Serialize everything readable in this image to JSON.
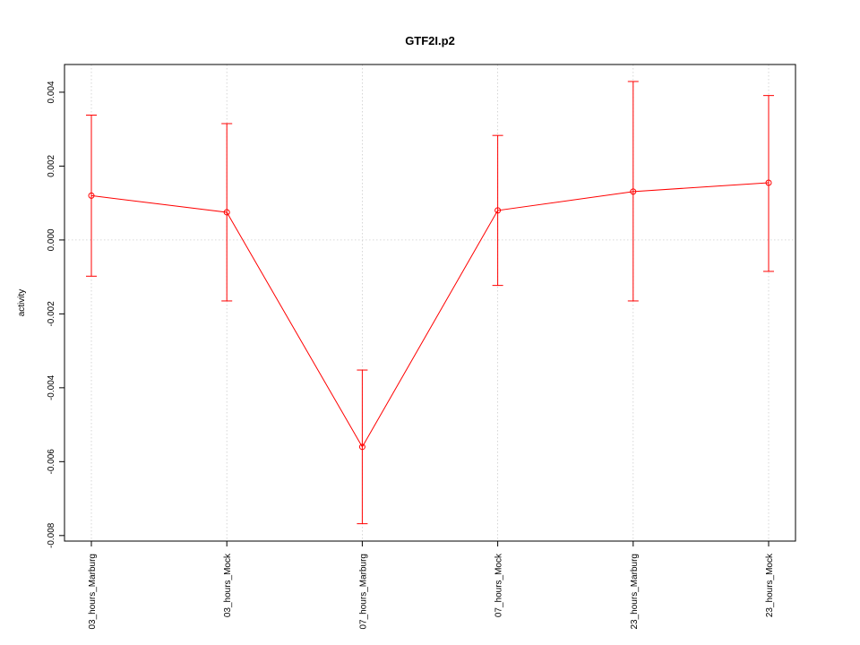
{
  "chart_data": {
    "type": "line",
    "title": "GTF2I.p2",
    "xlabel": "",
    "ylabel": "activity",
    "categories": [
      "03_hours_Marburg",
      "03_hours_Mock",
      "07_hours_Marburg",
      "07_hours_Mock",
      "23_hours_Marburg",
      "23_hours_Mock"
    ],
    "series": [
      {
        "values": [
          0.0012,
          0.00075,
          -0.0056,
          0.0008,
          0.00131,
          0.00155
        ],
        "error_low": [
          -0.00098,
          -0.00165,
          -0.00768,
          -0.00123,
          -0.00165,
          -0.00085
        ],
        "error_high": [
          0.00338,
          0.00315,
          -0.00352,
          0.00283,
          0.00429,
          0.00391
        ],
        "color": "#ff0000"
      }
    ],
    "ylim": [
      -0.00815,
      0.00475
    ],
    "yticks": [
      -0.008,
      -0.006,
      -0.004,
      -0.002,
      0.0,
      0.002,
      0.004
    ],
    "ytick_labels": [
      "-0.008",
      "-0.006",
      "-0.004",
      "-0.002",
      "0.000",
      "0.002",
      "0.004"
    ],
    "grid": true,
    "reference_line_y": 0
  }
}
